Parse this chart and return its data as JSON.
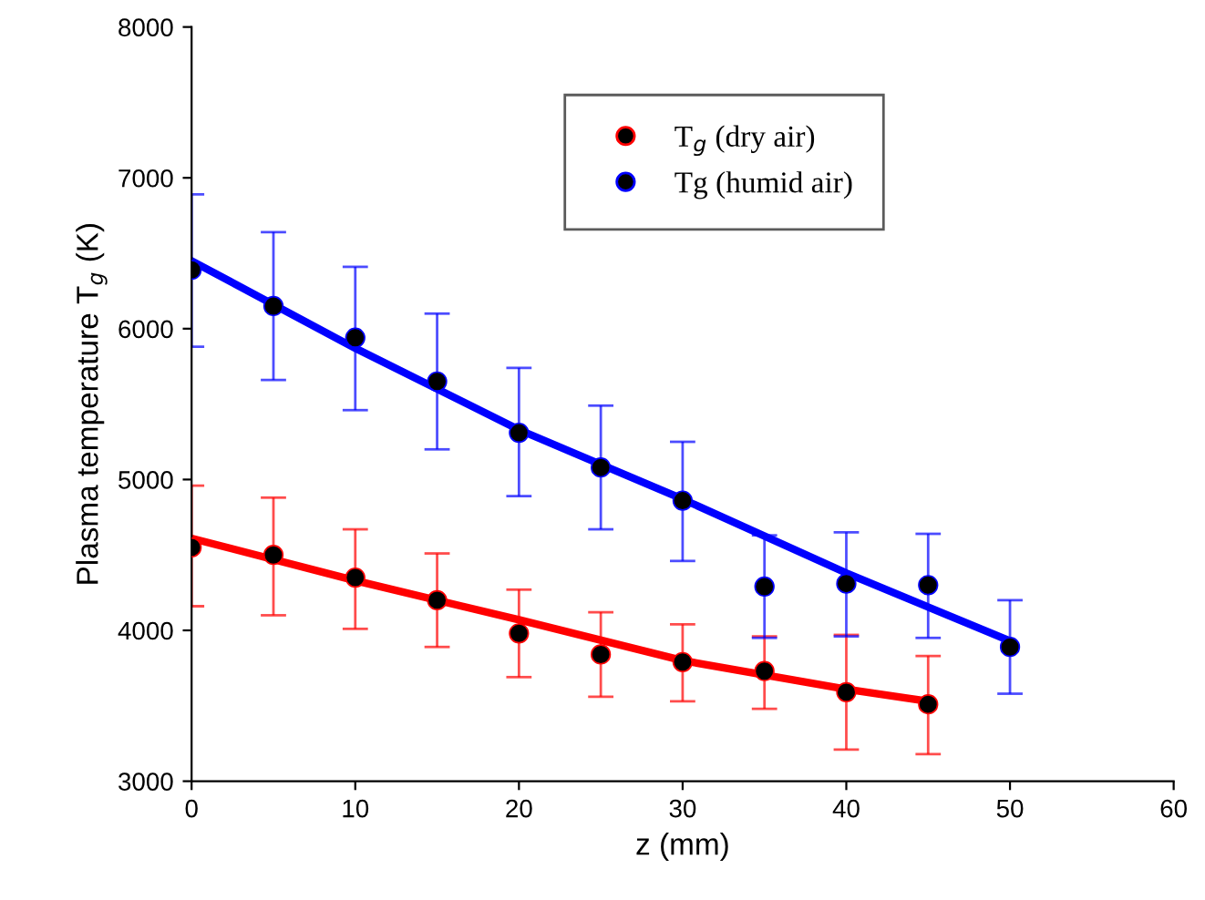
{
  "chart_data": {
    "type": "scatter",
    "xlabel": "z (mm)",
    "ylabel": "Plasma temperature T$_{g}$ (K)",
    "xlim": [
      0,
      60
    ],
    "xticks": [
      0,
      10,
      20,
      30,
      40,
      50,
      60
    ],
    "ylim": [
      3000,
      8000
    ],
    "yticks": [
      3000,
      4000,
      5000,
      6000,
      7000,
      8000
    ],
    "grid": false,
    "legend": "top right",
    "series": [
      {
        "name": "T$_{g}$ (dry air)",
        "color": "#ff0000",
        "marker": "circle",
        "x": [
          0,
          5,
          10,
          15,
          20,
          25,
          30,
          35,
          40,
          45
        ],
        "values": [
          4550,
          4500,
          4350,
          4200,
          3980,
          3840,
          3790,
          3730,
          3590,
          3510
        ],
        "errors": [
          [
            4160,
            4960
          ],
          [
            4100,
            4880
          ],
          [
            4010,
            4670
          ],
          [
            3890,
            4510
          ],
          [
            3690,
            4270
          ],
          [
            3560,
            4120
          ],
          [
            3530,
            4040
          ],
          [
            3480,
            3960
          ],
          [
            3210,
            3970
          ],
          [
            3180,
            3830
          ]
        ]
      },
      {
        "name": "Tg (humid air)",
        "color": "#0000ff",
        "marker": "circle",
        "x": [
          0,
          5,
          10,
          15,
          20,
          25,
          30,
          35,
          40,
          45,
          50
        ],
        "values": [
          6390,
          6150,
          5940,
          5650,
          5310,
          5080,
          4860,
          4290,
          4310,
          4300,
          3890
        ],
        "errors": [
          [
            5880,
            6890
          ],
          [
            5660,
            6640
          ],
          [
            5460,
            6410
          ],
          [
            5200,
            6100
          ],
          [
            4890,
            5740
          ],
          [
            4670,
            5490
          ],
          [
            4460,
            5250
          ],
          [
            3950,
            4630
          ],
          [
            3960,
            4650
          ],
          [
            3950,
            4640
          ],
          [
            3580,
            4200
          ]
        ]
      },
      {
        "type": "line",
        "marker": "none",
        "color": "#ff0000",
        "x": [
          0,
          10,
          20,
          30,
          40,
          45
        ],
        "values": [
          4610,
          4330,
          4070,
          3800,
          3610,
          3530
        ]
      },
      {
        "type": "line",
        "marker": "none",
        "color": "#0000ff",
        "x": [
          0,
          10,
          20,
          30,
          40,
          50
        ],
        "values": [
          6450,
          5870,
          5330,
          4870,
          4380,
          3930
        ]
      }
    ]
  }
}
